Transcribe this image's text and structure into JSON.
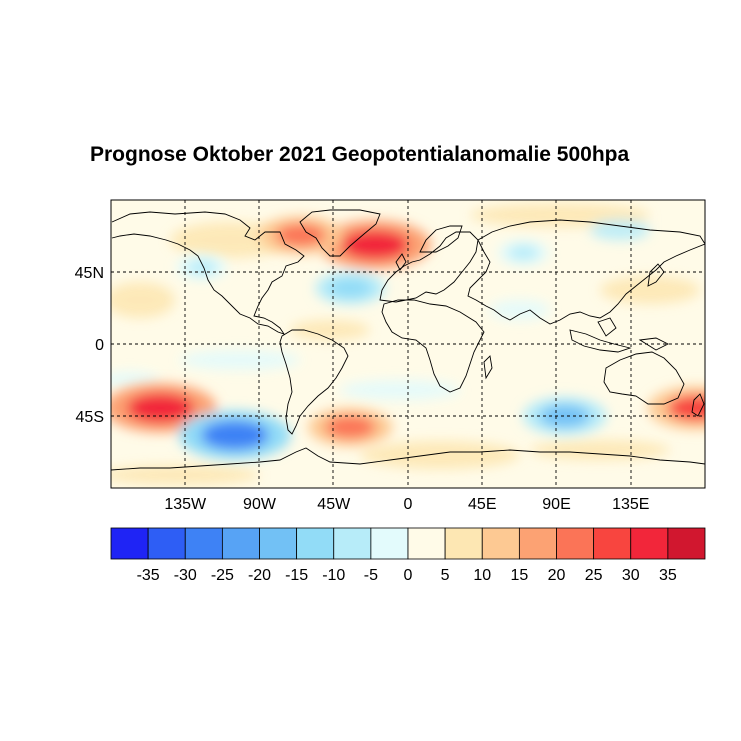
{
  "title": "Prognose Oktober 2021 Geopotentialanomalie 500hpa",
  "map": {
    "projection": "equirectangular",
    "lon_range": [
      -180,
      180
    ],
    "lat_range": [
      -90,
      90
    ],
    "x_ticks": [
      {
        "lon": -135,
        "label": "135W"
      },
      {
        "lon": -90,
        "label": "90W"
      },
      {
        "lon": -45,
        "label": "45W"
      },
      {
        "lon": 0,
        "label": "0"
      },
      {
        "lon": 45,
        "label": "45E"
      },
      {
        "lon": 90,
        "label": "90E"
      },
      {
        "lon": 135,
        "label": "135E"
      }
    ],
    "y_ticks": [
      {
        "lat": 45,
        "label": "45N"
      },
      {
        "lat": 0,
        "label": "0"
      },
      {
        "lat": -45,
        "label": "45S"
      }
    ],
    "anomalies": [
      {
        "name": "north-atlantic-positive",
        "lon": -20,
        "lat": 62,
        "value": 30
      },
      {
        "name": "canada-positive",
        "lon": -65,
        "lat": 68,
        "value": 20
      },
      {
        "name": "atlantic-negative",
        "lon": -35,
        "lat": 35,
        "value": -15
      },
      {
        "name": "east-pacific-negative",
        "lon": -125,
        "lat": 48,
        "value": -8
      },
      {
        "name": "eurasia-negative",
        "lon": 70,
        "lat": 57,
        "value": -8
      },
      {
        "name": "south-pacific-positive",
        "lon": -150,
        "lat": -40,
        "value": 30
      },
      {
        "name": "south-pacific-negative",
        "lon": -105,
        "lat": -57,
        "value": -30
      },
      {
        "name": "south-atlantic-positive",
        "lon": -35,
        "lat": -52,
        "value": 20
      },
      {
        "name": "indian-ocean-negative",
        "lon": 95,
        "lat": -45,
        "value": -20
      },
      {
        "name": "new-zealand-positive",
        "lon": 175,
        "lat": -40,
        "value": 25
      }
    ]
  },
  "colorbar": {
    "colors": [
      "#1f24f5",
      "#2e5ef5",
      "#3e82f5",
      "#57a3f5",
      "#72c1f5",
      "#92dcf7",
      "#b7ecf9",
      "#e3fbfc",
      "#fffbe8",
      "#fde7b3",
      "#fdc993",
      "#fca273",
      "#fb7457",
      "#f8453f",
      "#f2263a",
      "#d1172f"
    ],
    "labels": [
      "-35",
      "-30",
      "-25",
      "-20",
      "-15",
      "-10",
      "-5",
      "0",
      "5",
      "10",
      "15",
      "20",
      "25",
      "30",
      "35"
    ]
  }
}
